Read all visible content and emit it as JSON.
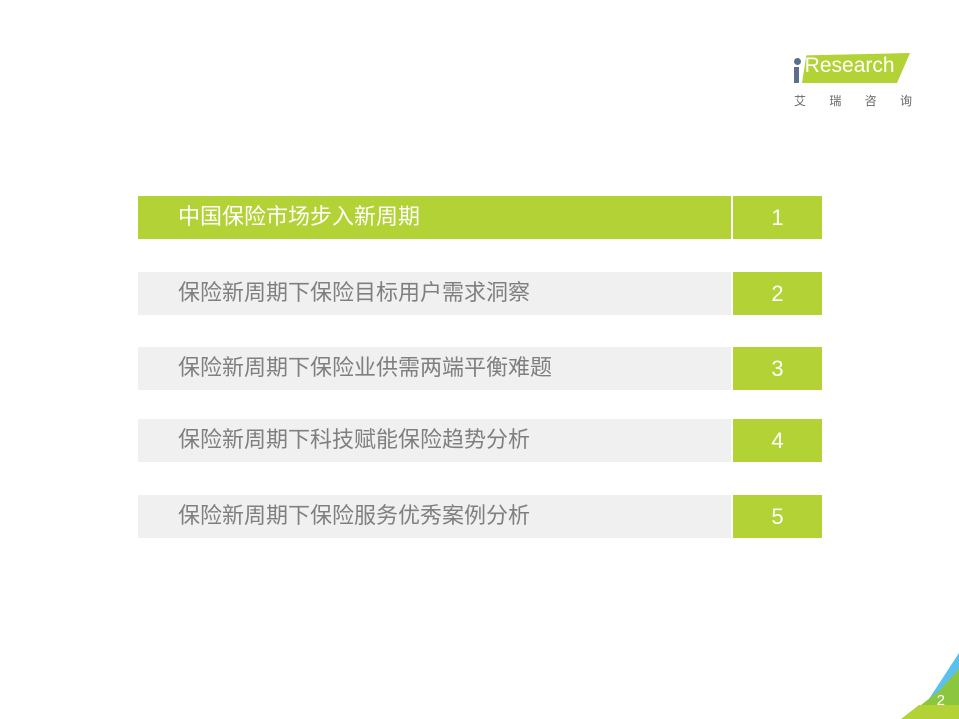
{
  "logo": {
    "brand": "iResearch",
    "chinese": [
      "艾",
      "瑞",
      "咨",
      "询"
    ]
  },
  "accent_color": "#b2d235",
  "toc": [
    {
      "label": "中国保险市场步入新周期",
      "number": "1",
      "active": true
    },
    {
      "label": "保险新周期下保险目标用户需求洞察",
      "number": "2",
      "active": false
    },
    {
      "label": "保险新周期下保险业供需两端平衡难题",
      "number": "3",
      "active": false
    },
    {
      "label": "保险新周期下科技赋能保险趋势分析",
      "number": "4",
      "active": false
    },
    {
      "label": "保险新周期下保险服务优秀案例分析",
      "number": "5",
      "active": false
    }
  ],
  "page_number": "2"
}
